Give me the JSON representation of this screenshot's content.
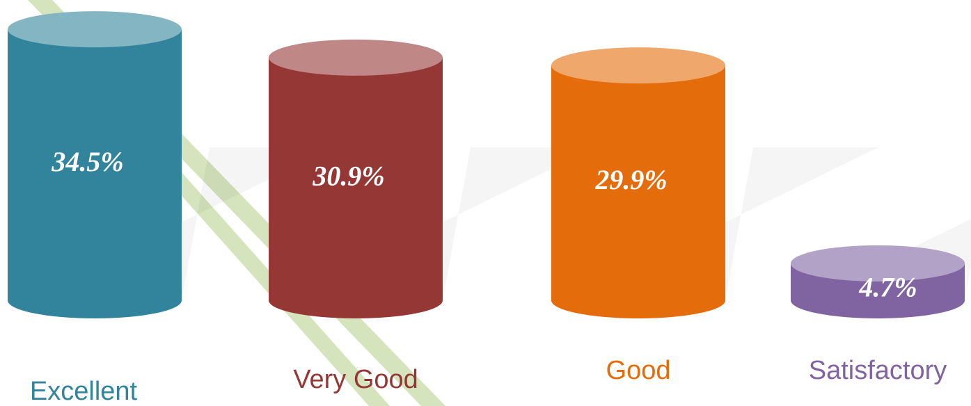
{
  "chart_data": {
    "type": "cylinder-bar",
    "categories": [
      "Excellent",
      "Very Good",
      "Good",
      "Satisfactory"
    ],
    "values": [
      34.5,
      30.9,
      29.9,
      4.7
    ],
    "value_labels": [
      "34.5%",
      "30.9%",
      "29.9%",
      "4.7%"
    ],
    "colors": [
      "#31849b",
      "#953735",
      "#e46c0a",
      "#8064a2"
    ]
  }
}
